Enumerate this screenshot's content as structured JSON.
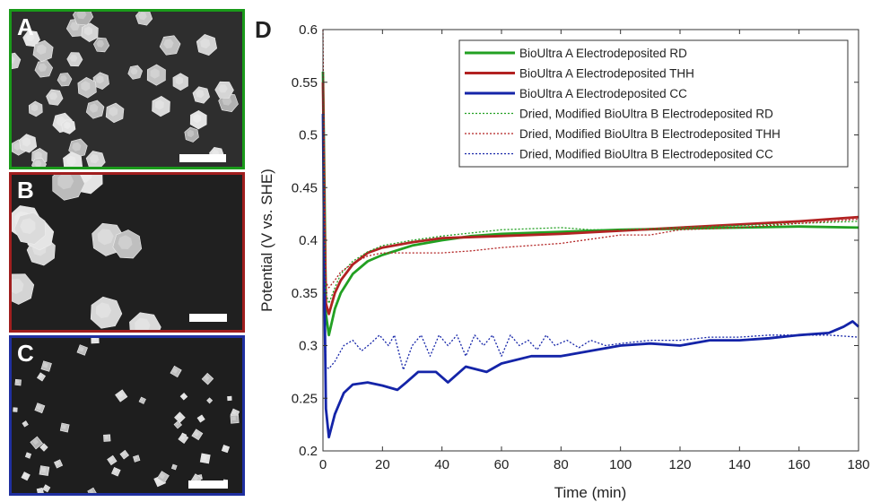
{
  "panels": [
    {
      "id": "a",
      "letter": "A",
      "border_color": "#1a9a1a",
      "particle": "polyhedron-round"
    },
    {
      "id": "b",
      "letter": "B",
      "border_color": "#a01e1e",
      "particle": "polyhedron-large"
    },
    {
      "id": "c",
      "letter": "C",
      "border_color": "#1f2fa0",
      "particle": "cube-small"
    }
  ],
  "chart_data": {
    "label": "D",
    "type": "line",
    "xlabel": "Time (min)",
    "ylabel": "Potential (V vs. SHE)",
    "xlim": [
      0,
      180
    ],
    "ylim": [
      0.2,
      0.6
    ],
    "xticks": [
      "0",
      "20",
      "40",
      "60",
      "80",
      "100",
      "120",
      "140",
      "160",
      "180"
    ],
    "yticks": [
      "0.2",
      "0.25",
      "0.3",
      "0.35",
      "0.4",
      "0.45",
      "0.5",
      "0.55",
      "0.6"
    ],
    "legend_position": "top-right",
    "grid": false,
    "series": [
      {
        "name": "BioUltra A Electrodeposited RD",
        "color": "#22a022",
        "style": "solid",
        "x": [
          0,
          0.5,
          1,
          2,
          4,
          6,
          10,
          15,
          20,
          30,
          40,
          50,
          60,
          80,
          100,
          120,
          140,
          160,
          180
        ],
        "y": [
          0.56,
          0.45,
          0.33,
          0.31,
          0.335,
          0.35,
          0.368,
          0.38,
          0.386,
          0.395,
          0.4,
          0.404,
          0.406,
          0.408,
          0.41,
          0.411,
          0.412,
          0.413,
          0.412
        ]
      },
      {
        "name": "BioUltra A Electrodeposited THH",
        "color": "#b22222",
        "style": "solid",
        "x": [
          0,
          0.5,
          1,
          2,
          4,
          6,
          10,
          15,
          20,
          30,
          40,
          60,
          80,
          100,
          120,
          140,
          160,
          180
        ],
        "y": [
          0.55,
          0.42,
          0.34,
          0.33,
          0.35,
          0.362,
          0.377,
          0.388,
          0.393,
          0.398,
          0.402,
          0.404,
          0.406,
          0.409,
          0.412,
          0.415,
          0.418,
          0.422
        ]
      },
      {
        "name": "BioUltra A Electrodeposited CC",
        "color": "#1424a8",
        "style": "solid",
        "x": [
          0,
          0.5,
          1,
          2,
          4,
          7,
          10,
          15,
          20,
          25,
          28,
          32,
          38,
          42,
          48,
          55,
          60,
          70,
          80,
          90,
          100,
          110,
          120,
          130,
          140,
          150,
          160,
          170,
          175,
          178,
          180
        ],
        "y": [
          0.52,
          0.35,
          0.24,
          0.213,
          0.235,
          0.255,
          0.263,
          0.265,
          0.262,
          0.258,
          0.265,
          0.275,
          0.275,
          0.265,
          0.28,
          0.275,
          0.283,
          0.29,
          0.29,
          0.295,
          0.3,
          0.302,
          0.3,
          0.305,
          0.305,
          0.307,
          0.31,
          0.312,
          0.318,
          0.323,
          0.318
        ]
      },
      {
        "name": "Dried, Modified BioUltra B Electrodeposited RD",
        "color": "#22a022",
        "style": "dotted",
        "x": [
          0,
          0.5,
          1,
          2,
          4,
          6,
          10,
          15,
          20,
          30,
          40,
          50,
          60,
          70,
          80,
          90,
          100,
          120,
          140,
          160,
          180
        ],
        "y": [
          0.56,
          0.42,
          0.35,
          0.34,
          0.355,
          0.368,
          0.38,
          0.389,
          0.395,
          0.4,
          0.404,
          0.407,
          0.41,
          0.411,
          0.412,
          0.41,
          0.41,
          0.412,
          0.414,
          0.416,
          0.418
        ]
      },
      {
        "name": "Dried, Modified BioUltra B Electrodeposited THH",
        "color": "#b22222",
        "style": "dotted",
        "x": [
          0,
          0.3,
          0.6,
          1,
          2,
          4,
          6,
          10,
          15,
          20,
          30,
          40,
          50,
          60,
          80,
          100,
          110,
          120,
          140,
          160,
          170,
          180
        ],
        "y": [
          0.6,
          0.5,
          0.4,
          0.36,
          0.355,
          0.362,
          0.37,
          0.378,
          0.385,
          0.388,
          0.388,
          0.388,
          0.39,
          0.393,
          0.397,
          0.405,
          0.405,
          0.41,
          0.412,
          0.416,
          0.418,
          0.42
        ]
      },
      {
        "name": "Dried, Modified BioUltra B Electrodeposited CC",
        "color": "#1424a8",
        "style": "dotted",
        "x": [
          0,
          0.5,
          1,
          2,
          4,
          7,
          10,
          13,
          16,
          19,
          22,
          24,
          27,
          30,
          33,
          36,
          39,
          42,
          45,
          48,
          51,
          54,
          57,
          60,
          63,
          66,
          69,
          72,
          75,
          78,
          82,
          86,
          90,
          95,
          100,
          110,
          120,
          130,
          140,
          150,
          160,
          170,
          180
        ],
        "y": [
          0.52,
          0.35,
          0.28,
          0.278,
          0.285,
          0.3,
          0.305,
          0.295,
          0.302,
          0.31,
          0.3,
          0.31,
          0.277,
          0.3,
          0.31,
          0.29,
          0.31,
          0.3,
          0.31,
          0.29,
          0.31,
          0.3,
          0.31,
          0.29,
          0.31,
          0.3,
          0.305,
          0.296,
          0.31,
          0.3,
          0.305,
          0.298,
          0.305,
          0.3,
          0.302,
          0.305,
          0.305,
          0.308,
          0.308,
          0.31,
          0.31,
          0.31,
          0.308
        ]
      }
    ]
  }
}
